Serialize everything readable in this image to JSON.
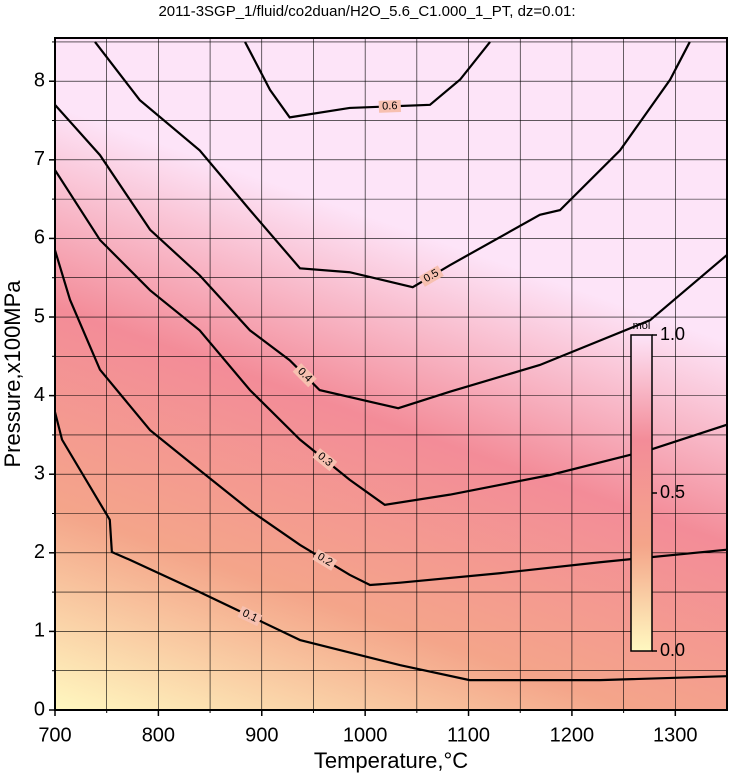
{
  "chart_data": {
    "type": "contour",
    "title": "2011-3SGP_1/fluid/co2duan/H2O_5.6_C1.000_1_PT, dz=0.01:",
    "x_label": "Temperature,°C",
    "y_label": "Pressure,x100MPa",
    "xlim": [
      700,
      1350
    ],
    "ylim": [
      0,
      8.55
    ],
    "xticks": [
      700,
      800,
      900,
      1000,
      1100,
      1200,
      1300
    ],
    "yticks": [
      0,
      1,
      2,
      3,
      4,
      5,
      6,
      7,
      8
    ],
    "xminor": [
      750,
      850,
      950,
      1050,
      1150,
      1250
    ],
    "yminor": [
      0.5,
      1.5,
      2.5,
      3.5,
      4.5,
      5.5,
      6.5,
      7.5,
      8.5
    ],
    "grid": true,
    "line_color": "#000000",
    "series": [
      {
        "level": 0.1,
        "x": [
          700,
          706.8,
          753,
          755,
          772.5,
          840,
          937,
          1034,
          1101,
          1227,
          1350
        ],
        "y": [
          3.79,
          3.44,
          2.42,
          2.01,
          1.91,
          1.5,
          0.89,
          0.57,
          0.38,
          0.38,
          0.43
        ]
      },
      {
        "level": 0.2,
        "x": [
          700,
          714.5,
          743.5,
          792,
          840,
          888.6,
          937,
          985,
          1004.7,
          1033.7,
          1130,
          1227,
          1350
        ],
        "y": [
          5.85,
          5.22,
          4.33,
          3.56,
          3.05,
          2.54,
          2.1,
          1.72,
          1.59,
          1.62,
          1.74,
          1.88,
          2.04
        ]
      },
      {
        "level": 0.3,
        "x": [
          700,
          743.5,
          792,
          840,
          888.6,
          937,
          985,
          1019,
          1082,
          1179,
          1275.6,
          1350
        ],
        "y": [
          6.87,
          5.98,
          5.34,
          4.83,
          4.07,
          3.44,
          2.93,
          2.61,
          2.74,
          2.99,
          3.31,
          3.63
        ]
      },
      {
        "level": 0.4,
        "x": [
          700,
          743.5,
          792,
          840,
          888.6,
          927,
          956,
          1032,
          1082,
          1169,
          1275.6,
          1350
        ],
        "y": [
          7.7,
          7.06,
          6.11,
          5.53,
          4.83,
          4.45,
          4.07,
          3.84,
          4.05,
          4.39,
          4.96,
          5.79
        ]
      },
      {
        "level": 0.5,
        "x": [
          738.7,
          782,
          840,
          888.6,
          937,
          985,
          1046,
          1082,
          1169,
          1188.5,
          1246.5,
          1295,
          1314
        ],
        "y": [
          8.5,
          7.76,
          7.12,
          6.36,
          5.62,
          5.57,
          5.38,
          5.66,
          6.3,
          6.36,
          7.12,
          8.02,
          8.5
        ]
      },
      {
        "level": 0.6,
        "x": [
          883.8,
          908,
          927,
          985,
          1062.7,
          1091.8,
          1120.8
        ],
        "y": [
          8.5,
          7.89,
          7.54,
          7.66,
          7.7,
          8.02,
          8.5
        ]
      }
    ],
    "colorbar": {
      "label": "mol",
      "lim": [
        0,
        1
      ],
      "ticks": [
        {
          "value": 0,
          "label": "0.0"
        },
        {
          "value": 0.5,
          "label": "0.5"
        },
        {
          "value": 1,
          "label": "1.0"
        }
      ],
      "colors": [
        "#fff8c0",
        "#f4a58a",
        "#f38c98",
        "#fde4f8"
      ]
    }
  }
}
